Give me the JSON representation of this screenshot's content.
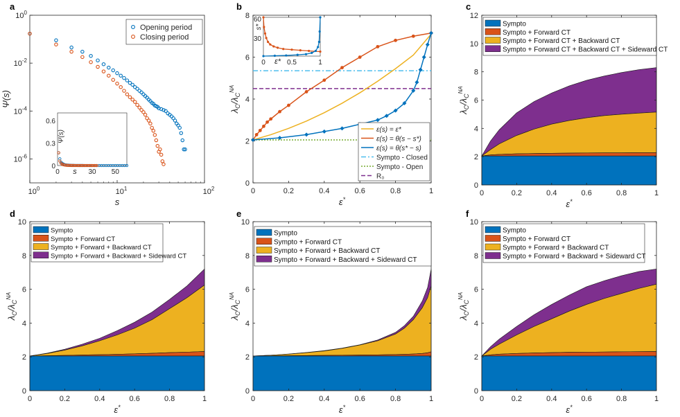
{
  "colors": {
    "blue": "#0072BD",
    "orange": "#D95319",
    "yellow": "#EDB120",
    "purple": "#7E2F8E",
    "green": "#77AC30",
    "cyan": "#4DBEEE"
  },
  "chart_data": [
    {
      "panel": "a",
      "type": "scatter",
      "xscale": "log",
      "yscale": "log",
      "xlabel": "s",
      "ylabel": "Ψ(s)",
      "xlim": [
        1,
        100
      ],
      "ylim": [
        1e-07,
        1
      ],
      "xticks": [
        "10^0",
        "10^1",
        "10^2"
      ],
      "yticks": [
        "10^-6",
        "10^-4",
        "10^-2",
        "10^0"
      ],
      "legend": {
        "placement": "top-right",
        "entries": [
          "Opening period",
          "Closing period"
        ]
      },
      "series": [
        {
          "name": "Opening period",
          "color": "blue",
          "x": [
            1,
            2,
            3,
            4,
            5,
            6,
            7,
            8,
            9,
            10,
            11,
            12,
            13,
            14,
            15,
            16,
            17,
            18,
            19,
            20,
            21,
            22,
            23,
            24,
            25,
            26,
            27,
            28,
            29,
            30,
            32,
            34,
            36,
            38,
            40,
            42,
            44,
            46,
            48,
            50,
            52,
            54,
            56,
            58,
            60
          ],
          "y": [
            0.17,
            0.09,
            0.045,
            0.03,
            0.02,
            0.013,
            0.009,
            0.0065,
            0.005,
            0.0038,
            0.003,
            0.0024,
            0.0019,
            0.0015,
            0.00125,
            0.001,
            0.00085,
            0.0007,
            0.0006,
            0.0005,
            0.00042,
            0.00036,
            0.0003,
            0.00026,
            0.00022,
            0.0002,
            0.00017,
            0.00016,
            0.00015,
            0.00013,
            0.00012,
            0.00011,
            0.0001,
            8e-05,
            7e-05,
            6e-05,
            5e-05,
            4e-05,
            3e-05,
            2.5e-05,
            2e-05,
            1.2e-05,
            6e-06,
            2.5e-06,
            2.5e-06
          ]
        },
        {
          "name": "Closing period",
          "color": "orange",
          "x": [
            1,
            2,
            3,
            4,
            5,
            6,
            7,
            8,
            9,
            10,
            11,
            12,
            13,
            14,
            15,
            16,
            17,
            18,
            19,
            20,
            21,
            22,
            23,
            24,
            25,
            26,
            27,
            28,
            29,
            30,
            31,
            32,
            33,
            34
          ],
          "y": [
            0.17,
            0.06,
            0.03,
            0.018,
            0.011,
            0.007,
            0.0045,
            0.003,
            0.002,
            0.0014,
            0.001,
            0.0007,
            0.0005,
            0.00038,
            0.0003,
            0.00024,
            0.00018,
            0.00014,
            0.00011,
            9e-05,
            7e-05,
            5e-05,
            4e-05,
            3e-05,
            2e-05,
            1.5e-05,
            1e-05,
            6e-06,
            3.5e-06,
            2e-06,
            2.5e-06,
            1.5e-06,
            8e-07,
            6e-07
          ]
        }
      ],
      "inset": {
        "xlabel": "s",
        "ylabel": "Ψ(s)",
        "xlim": [
          0,
          60
        ],
        "ylim": [
          0,
          0.7
        ],
        "xticks": [
          0,
          30,
          50
        ],
        "yticks": [
          0,
          0.3,
          0.6
        ]
      }
    },
    {
      "panel": "b",
      "type": "line",
      "xlabel": "ε*",
      "ylabel": "λ_C / λ_C^NA",
      "xlim": [
        0,
        1
      ],
      "ylim": [
        0,
        8
      ],
      "xticks": [
        0,
        0.2,
        0.4,
        0.6,
        0.8,
        1
      ],
      "yticks": [
        0,
        2,
        4,
        6,
        8
      ],
      "legend": {
        "placement": "bottom-right",
        "entries": [
          "ε(s) = ε*",
          "ε(s) = θ(s − s*)",
          "ε(s) = θ(s* − s)",
          "Sympto - Closed",
          "Sympto - Open",
          "R₀"
        ]
      },
      "series": [
        {
          "name": "ε(s) = ε*",
          "color": "yellow",
          "x": [
            0,
            0.1,
            0.2,
            0.3,
            0.4,
            0.5,
            0.6,
            0.7,
            0.8,
            0.9,
            1
          ],
          "y": [
            2.05,
            2.3,
            2.6,
            2.95,
            3.35,
            3.8,
            4.3,
            4.85,
            5.45,
            6.1,
            7.1
          ]
        },
        {
          "name": "ε(s) = θ(s − s*)",
          "color": "orange",
          "x": [
            0,
            0.02,
            0.04,
            0.06,
            0.08,
            0.1,
            0.15,
            0.2,
            0.3,
            0.4,
            0.5,
            0.6,
            0.7,
            0.8,
            0.9,
            1
          ],
          "y": [
            2.05,
            2.3,
            2.5,
            2.7,
            2.9,
            3.05,
            3.4,
            3.7,
            4.35,
            4.9,
            5.5,
            6.0,
            6.5,
            6.8,
            7.0,
            7.15
          ]
        },
        {
          "name": "ε(s) = θ(s* − s)",
          "color": "blue",
          "x": [
            0,
            0.15,
            0.3,
            0.4,
            0.5,
            0.6,
            0.7,
            0.75,
            0.8,
            0.85,
            0.9,
            0.92,
            0.94,
            0.96,
            0.98,
            1
          ],
          "y": [
            2.05,
            2.15,
            2.3,
            2.45,
            2.6,
            2.8,
            3.0,
            3.2,
            3.45,
            3.8,
            4.4,
            4.8,
            5.4,
            6.0,
            6.6,
            7.15
          ]
        },
        {
          "name": "Sympto - Closed",
          "color": "cyan",
          "dash": "dashdot",
          "y_const": 5.35
        },
        {
          "name": "Sympto - Open",
          "color": "green",
          "dash": "dotted",
          "y_const": 2.05
        },
        {
          "name": "R₀",
          "color": "purple",
          "dash": "dashed",
          "y_const": 4.5
        }
      ],
      "inset": {
        "xlabel": "ε*",
        "ylabel": "s*",
        "xlim": [
          0,
          1
        ],
        "ylim": [
          0,
          60
        ],
        "xticks": [
          0,
          0.5,
          1
        ],
        "yticks": [
          30,
          60
        ],
        "series": [
          {
            "color": "orange",
            "x": [
              0,
              0.01,
              0.03,
              0.05,
              0.08,
              0.12,
              0.18,
              0.25,
              0.35,
              0.5,
              0.65,
              0.8,
              1
            ],
            "y": [
              60,
              45,
              35,
              28,
              22,
              18,
              15,
              13,
              11,
              10,
              9,
              8,
              7
            ]
          },
          {
            "color": "blue",
            "x": [
              0,
              0.2,
              0.4,
              0.6,
              0.75,
              0.85,
              0.92,
              0.96,
              0.98,
              0.99,
              1
            ],
            "y": [
              0,
              0.5,
              1,
              2,
              3,
              5,
              8,
              14,
              22,
              38,
              60
            ]
          }
        ]
      }
    },
    {
      "panel": "c",
      "type": "area",
      "xlabel": "ε*",
      "ylabel": "λ_C / λ_C^NA",
      "xlim": [
        0,
        1
      ],
      "ylim": [
        0,
        12
      ],
      "xticks": [
        0,
        0.2,
        0.4,
        0.6,
        0.8,
        1
      ],
      "yticks": [
        0,
        2,
        4,
        6,
        8,
        10,
        12
      ],
      "x": [
        0,
        0.05,
        0.1,
        0.2,
        0.3,
        0.4,
        0.5,
        0.6,
        0.7,
        0.8,
        0.9,
        1
      ],
      "series": [
        {
          "name": "Sympto",
          "color": "blue",
          "values": [
            2.05,
            2.05,
            2.05,
            2.05,
            2.05,
            2.05,
            2.05,
            2.05,
            2.05,
            2.05,
            2.05,
            2.05
          ]
        },
        {
          "name": "Sympto + Forward CT",
          "color": "orange",
          "values": [
            2.05,
            2.12,
            2.16,
            2.2,
            2.22,
            2.24,
            2.25,
            2.26,
            2.27,
            2.27,
            2.28,
            2.28
          ]
        },
        {
          "name": "Sympto + Forward CT + Backward CT",
          "color": "yellow",
          "values": [
            2.05,
            2.5,
            2.9,
            3.5,
            3.95,
            4.3,
            4.55,
            4.75,
            4.9,
            5.0,
            5.08,
            5.15
          ]
        },
        {
          "name": "Sympto + Forward CT + Backward CT + Sideward CT",
          "color": "purple",
          "values": [
            2.05,
            3.1,
            3.9,
            5.1,
            5.9,
            6.5,
            7.0,
            7.4,
            7.7,
            7.95,
            8.15,
            8.3
          ]
        }
      ]
    },
    {
      "panel": "d",
      "type": "area",
      "xlabel": "ε*",
      "ylabel": "λ_C / λ_C^NA",
      "xlim": [
        0,
        1
      ],
      "ylim": [
        0,
        10
      ],
      "xticks": [
        0,
        0.2,
        0.4,
        0.6,
        0.8,
        1
      ],
      "yticks": [
        0,
        2,
        4,
        6,
        8,
        10
      ],
      "x": [
        0,
        0.1,
        0.2,
        0.3,
        0.4,
        0.5,
        0.6,
        0.7,
        0.8,
        0.9,
        1
      ],
      "series": [
        {
          "name": "Sympto",
          "color": "blue",
          "values": [
            2.05,
            2.05,
            2.05,
            2.05,
            2.05,
            2.05,
            2.05,
            2.05,
            2.05,
            2.05,
            2.05
          ]
        },
        {
          "name": "Sympto + Forward CT",
          "color": "orange",
          "values": [
            2.05,
            2.07,
            2.09,
            2.11,
            2.13,
            2.15,
            2.18,
            2.21,
            2.25,
            2.28,
            2.32
          ]
        },
        {
          "name": "Sympto + Forward + Backward CT",
          "color": "yellow",
          "values": [
            2.05,
            2.2,
            2.4,
            2.65,
            2.95,
            3.3,
            3.7,
            4.2,
            4.85,
            5.5,
            6.25
          ]
        },
        {
          "name": "Sympto + Forward + Backward + Sideward CT",
          "color": "purple",
          "values": [
            2.05,
            2.22,
            2.45,
            2.75,
            3.1,
            3.55,
            4.05,
            4.65,
            5.4,
            6.2,
            7.2
          ]
        }
      ]
    },
    {
      "panel": "e",
      "type": "area",
      "xlabel": "ε*",
      "ylabel": "λ_C / λ_C^NA",
      "xlim": [
        0,
        1
      ],
      "ylim": [
        0,
        10
      ],
      "xticks": [
        0,
        0.2,
        0.4,
        0.6,
        0.8,
        1
      ],
      "yticks": [
        0,
        2,
        4,
        6,
        8,
        10
      ],
      "x": [
        0,
        0.1,
        0.2,
        0.3,
        0.4,
        0.5,
        0.6,
        0.7,
        0.8,
        0.85,
        0.9,
        0.95,
        0.98,
        1
      ],
      "series": [
        {
          "name": "Sympto",
          "color": "blue",
          "values": [
            2.05,
            2.05,
            2.05,
            2.05,
            2.05,
            2.05,
            2.05,
            2.05,
            2.05,
            2.05,
            2.05,
            2.05,
            2.05,
            2.05
          ]
        },
        {
          "name": "Sympto + Forward CT",
          "color": "orange",
          "values": [
            2.05,
            2.06,
            2.07,
            2.08,
            2.09,
            2.1,
            2.11,
            2.12,
            2.14,
            2.15,
            2.17,
            2.2,
            2.24,
            2.3
          ]
        },
        {
          "name": "Sympto + Forward + Backward CT",
          "color": "yellow",
          "values": [
            2.05,
            2.1,
            2.16,
            2.25,
            2.35,
            2.5,
            2.7,
            2.95,
            3.35,
            3.7,
            4.2,
            4.9,
            5.5,
            6.2
          ]
        },
        {
          "name": "Sympto + Forward + Backward + Sideward CT",
          "color": "purple",
          "values": [
            2.05,
            2.1,
            2.17,
            2.26,
            2.37,
            2.52,
            2.72,
            3.0,
            3.45,
            3.85,
            4.4,
            5.3,
            6.1,
            7.2
          ]
        }
      ]
    },
    {
      "panel": "f",
      "type": "area",
      "xlabel": "ε*",
      "ylabel": "λ_C / λ_C^NA",
      "xlim": [
        0,
        1
      ],
      "ylim": [
        0,
        10
      ],
      "xticks": [
        0,
        0.2,
        0.4,
        0.6,
        0.8,
        1
      ],
      "yticks": [
        0,
        2,
        4,
        6,
        8,
        10
      ],
      "x": [
        0,
        0.05,
        0.1,
        0.2,
        0.3,
        0.4,
        0.5,
        0.6,
        0.7,
        0.8,
        0.9,
        1
      ],
      "series": [
        {
          "name": "Sympto",
          "color": "blue",
          "values": [
            2.05,
            2.05,
            2.05,
            2.05,
            2.05,
            2.05,
            2.05,
            2.05,
            2.05,
            2.05,
            2.05,
            2.05
          ]
        },
        {
          "name": "Sympto + Forward CT",
          "color": "orange",
          "values": [
            2.05,
            2.12,
            2.16,
            2.2,
            2.23,
            2.25,
            2.27,
            2.28,
            2.29,
            2.3,
            2.31,
            2.32
          ]
        },
        {
          "name": "Sympto + Forward + Backward CT",
          "color": "yellow",
          "values": [
            2.05,
            2.45,
            2.75,
            3.3,
            3.8,
            4.25,
            4.7,
            5.1,
            5.45,
            5.75,
            6.05,
            6.3
          ]
        },
        {
          "name": "Sympto + Forward + Backward + Sideward CT",
          "color": "purple",
          "values": [
            2.05,
            2.6,
            3.05,
            3.8,
            4.5,
            5.1,
            5.65,
            6.15,
            6.5,
            6.8,
            7.05,
            7.2
          ]
        }
      ]
    }
  ]
}
